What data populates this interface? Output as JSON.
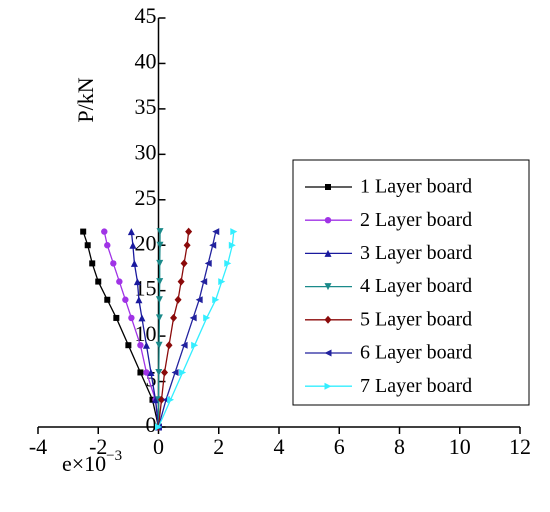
{
  "chart_data": {
    "type": "line",
    "x_label": {
      "base": "e×10",
      "exponent": "−3"
    },
    "y_label": "P/kN",
    "xlim": [
      -4,
      12
    ],
    "xticks": [
      -4,
      -2,
      0,
      2,
      4,
      6,
      8,
      10,
      12
    ],
    "ylim": [
      0,
      45
    ],
    "yticks": [
      0,
      5,
      10,
      15,
      20,
      25,
      30,
      35,
      40,
      45
    ],
    "legend": "right",
    "series": [
      {
        "name": "1 Layer board",
        "color": "#000000",
        "marker": "square",
        "x": [
          0,
          -0.2,
          -0.6,
          -1.0,
          -1.4,
          -1.7,
          -2.0,
          -2.2,
          -2.35,
          -2.5
        ],
        "values": [
          0,
          3,
          6,
          9,
          12,
          14,
          16,
          18,
          20,
          21.5
        ]
      },
      {
        "name": "2 Layer board",
        "color": "#a033e6",
        "marker": "circle",
        "x": [
          0,
          -0.1,
          -0.4,
          -0.6,
          -0.9,
          -1.1,
          -1.3,
          -1.5,
          -1.7,
          -1.8
        ],
        "values": [
          0,
          3,
          6,
          9,
          12,
          14,
          16,
          18,
          20,
          21.5
        ]
      },
      {
        "name": "3 Layer board",
        "color": "#1a1a9e",
        "marker": "triangle-up",
        "x": [
          0,
          -0.1,
          -0.25,
          -0.4,
          -0.55,
          -0.65,
          -0.7,
          -0.8,
          -0.85,
          -0.9
        ],
        "values": [
          0,
          3,
          6,
          9,
          12,
          14,
          16,
          18,
          20,
          21.5
        ]
      },
      {
        "name": "4 Layer board",
        "color": "#1a8a8a",
        "marker": "triangle-down",
        "x": [
          0,
          0,
          0.01,
          0.02,
          0.03,
          0.03,
          0.04,
          0.04,
          0.05,
          0.05
        ],
        "values": [
          0,
          3,
          6,
          9,
          12,
          14,
          16,
          18,
          20,
          21.5
        ]
      },
      {
        "name": "5 Layer board",
        "color": "#8b0a0a",
        "marker": "diamond",
        "x": [
          0,
          0.1,
          0.2,
          0.35,
          0.5,
          0.65,
          0.75,
          0.85,
          0.95,
          1.0
        ],
        "values": [
          0,
          3,
          6,
          9,
          12,
          14,
          16,
          18,
          20,
          21.5
        ]
      },
      {
        "name": "6 Layer board",
        "color": "#22229e",
        "marker": "triangle-left",
        "x": [
          0,
          0.25,
          0.55,
          0.85,
          1.15,
          1.35,
          1.5,
          1.65,
          1.8,
          1.9
        ],
        "values": [
          0,
          3,
          6,
          9,
          12,
          14,
          16,
          18,
          20,
          21.5
        ]
      },
      {
        "name": "7 Layer board",
        "color": "#33eeff",
        "marker": "triangle-right",
        "x": [
          0,
          0.4,
          0.8,
          1.2,
          1.6,
          1.9,
          2.1,
          2.3,
          2.45,
          2.5
        ],
        "values": [
          0,
          3,
          6,
          9,
          12,
          14,
          16,
          18,
          20,
          21.5
        ]
      }
    ]
  }
}
